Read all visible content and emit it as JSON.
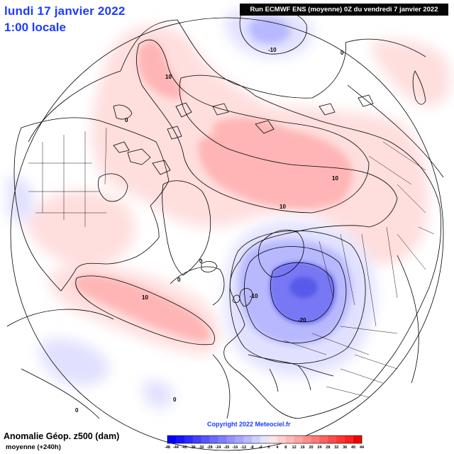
{
  "header": {
    "date_title": "lundi 17 janvier 2022",
    "time_title": "1:00 locale",
    "run_banner": "Run ECMWF ENS (moyenne) 0Z du vendredi 7 janvier 2022"
  },
  "footer": {
    "parameter": "Anomalie Géop. z500 (dam)",
    "subtitle": "moyenne   (+240h)",
    "copyright": "Copyright 2022 Meteociel.fr"
  },
  "legend": {
    "ticks": [
      "-48",
      "-44",
      "-40",
      "-36",
      "-32",
      "-28",
      "-24",
      "-20",
      "-16",
      "-12",
      "-8",
      "-4",
      "0",
      "4",
      "8",
      "12",
      "16",
      "20",
      "24",
      "28",
      "32",
      "36",
      "40",
      "44"
    ],
    "colors": [
      "#0000ff",
      "#1414ff",
      "#2a2aff",
      "#4040ff",
      "#5656ff",
      "#6a6aff",
      "#7e7eff",
      "#9292ff",
      "#a6a6ff",
      "#babaff",
      "#cfcfff",
      "#e4e4ff",
      "#ffe4e4",
      "#ffcfcf",
      "#ffb9b9",
      "#ffa3a3",
      "#ff8d8d",
      "#ff7777",
      "#ff6161",
      "#ff4b4b",
      "#ff3535",
      "#ff1f1f",
      "#f00000"
    ]
  },
  "contour_labels": [
    {
      "text": "10",
      "kind": "positive"
    },
    {
      "text": "-10",
      "kind": "negative"
    },
    {
      "text": "0",
      "kind": "zero"
    },
    {
      "text": "0",
      "kind": "zero"
    },
    {
      "text": "10",
      "kind": "positive"
    },
    {
      "text": "10",
      "kind": "positive"
    },
    {
      "text": "0",
      "kind": "zero"
    },
    {
      "text": "0",
      "kind": "zero"
    },
    {
      "text": "10",
      "kind": "positive"
    },
    {
      "text": "-10",
      "kind": "negative"
    },
    {
      "text": "-20",
      "kind": "negative"
    },
    {
      "text": "0",
      "kind": "zero"
    },
    {
      "text": "0",
      "kind": "zero"
    }
  ],
  "colors": {
    "title_blue": "#1a3cff",
    "anomaly_positive": "#ff9a9a",
    "anomaly_negative": "#8a8aff"
  }
}
